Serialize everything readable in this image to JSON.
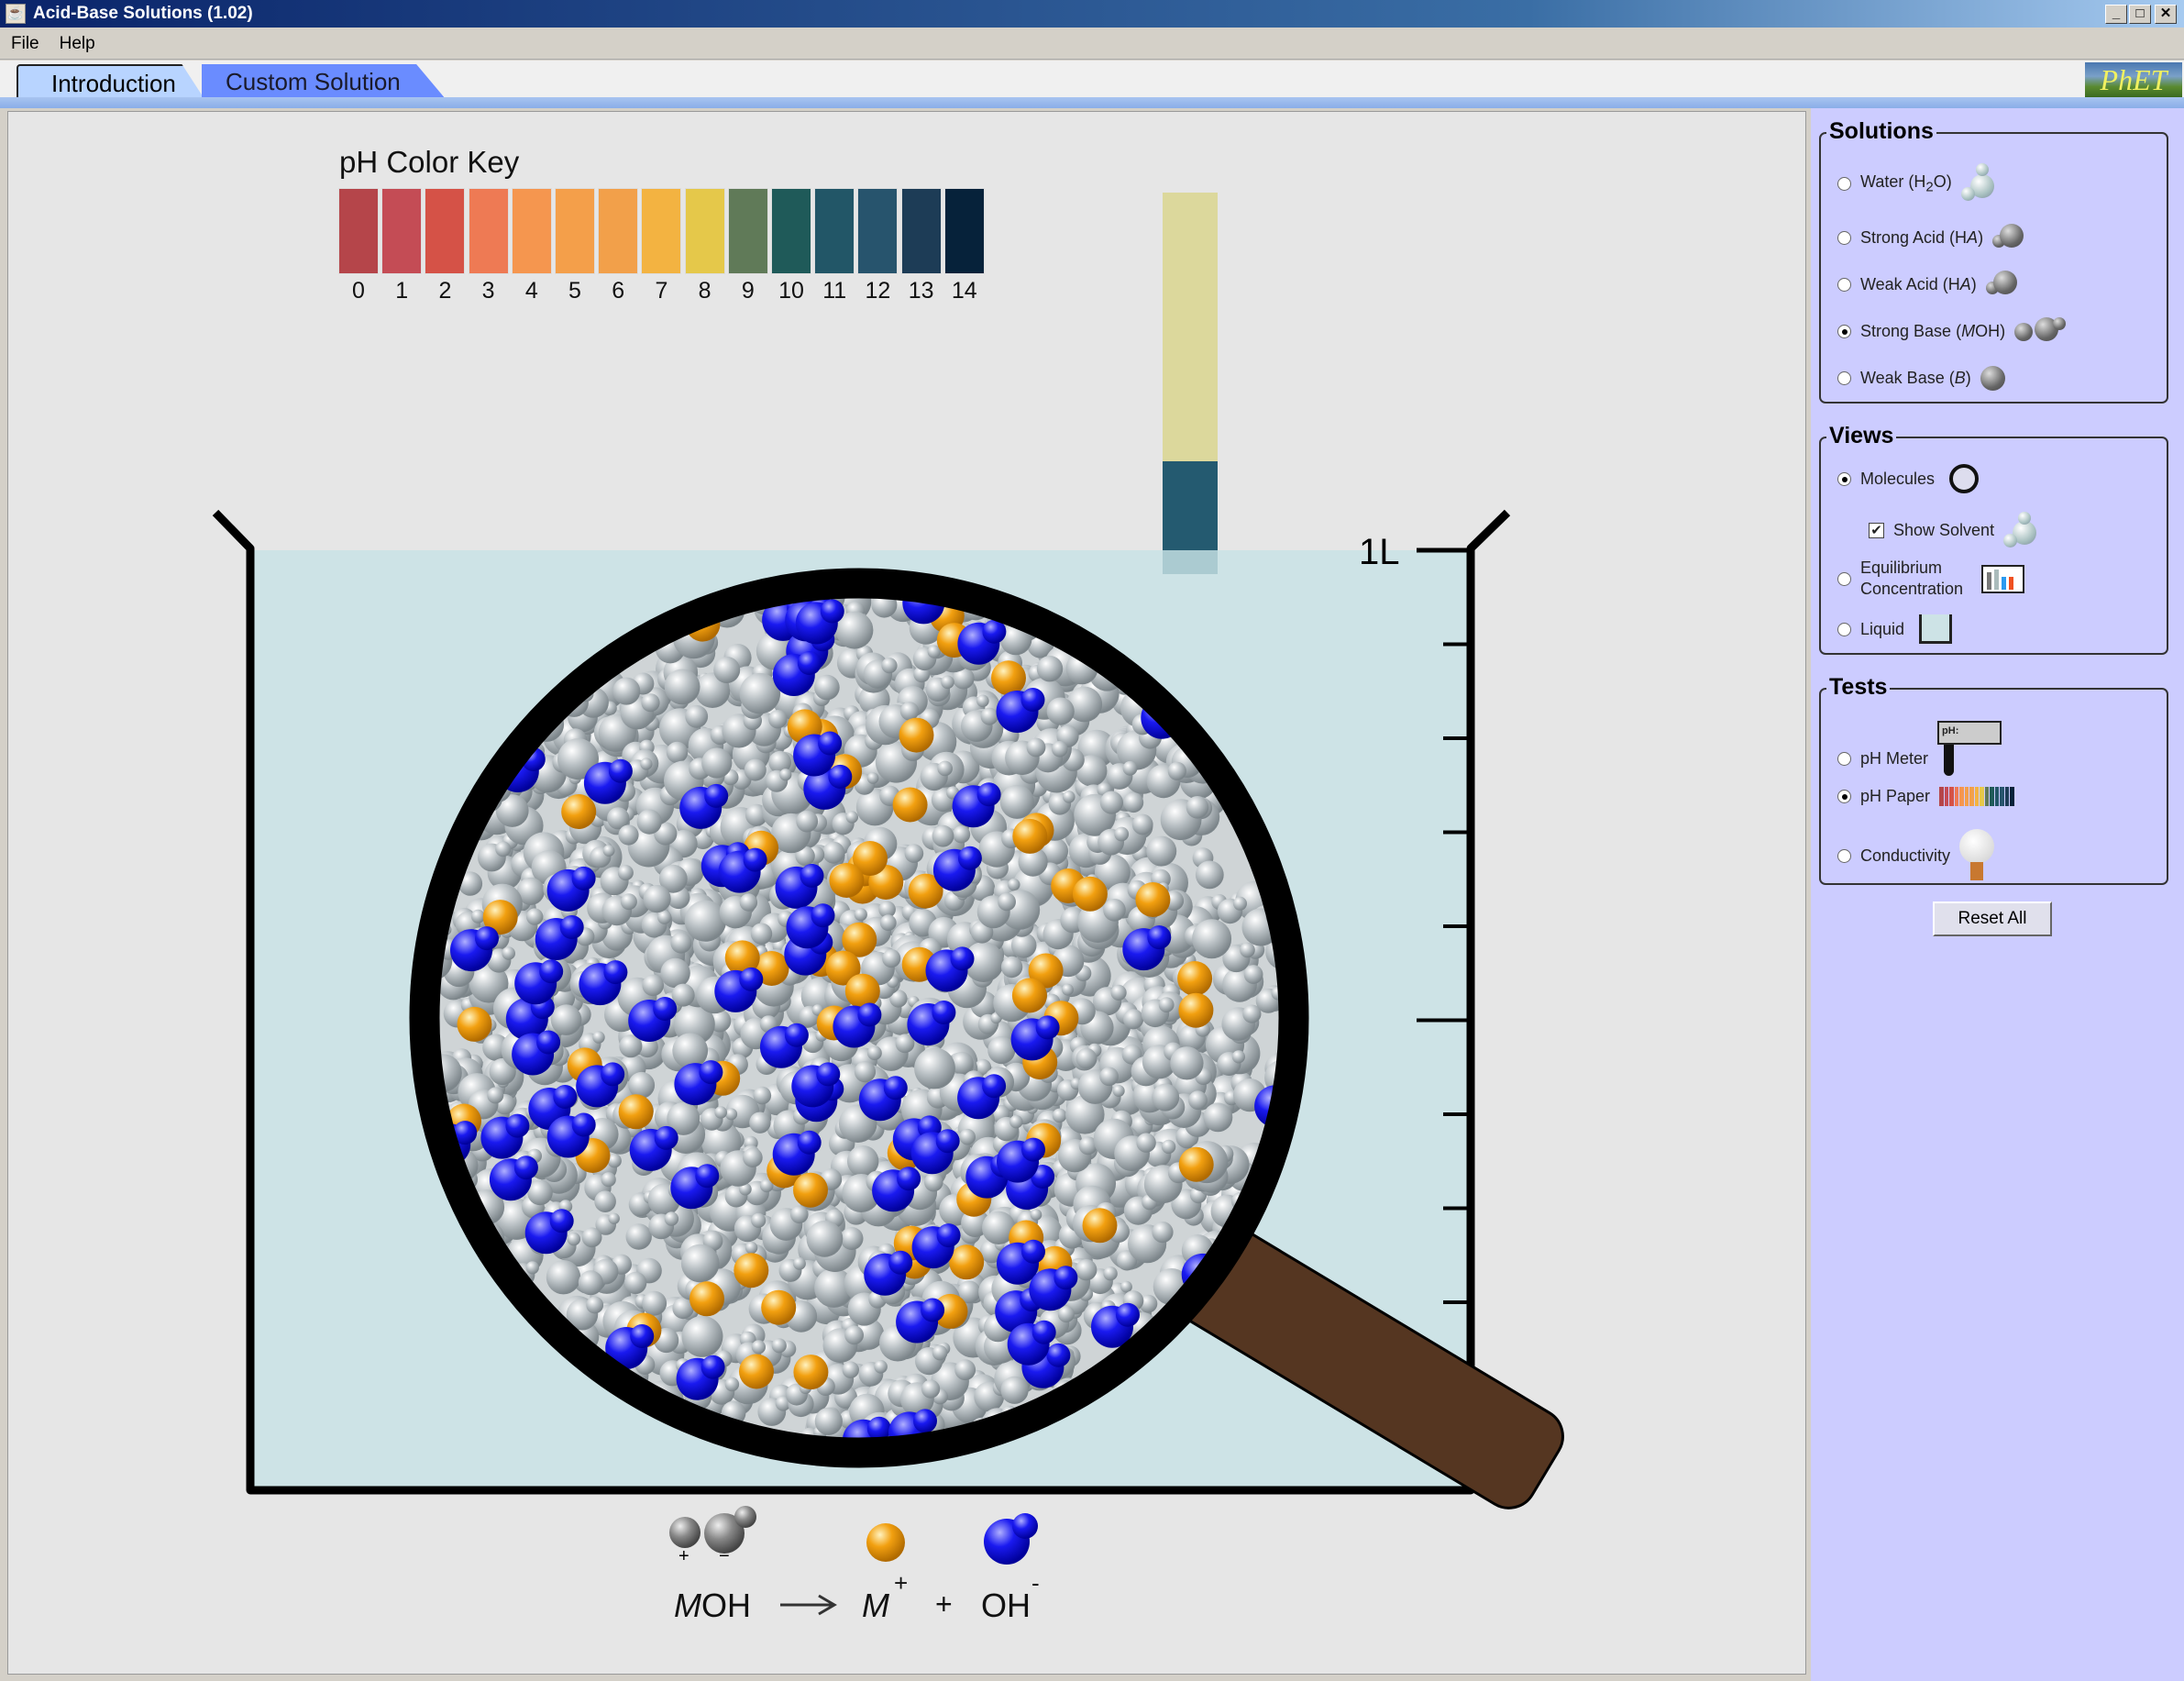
{
  "window": {
    "title": "Acid-Base Solutions (1.02)",
    "controls": [
      "_",
      "□",
      "✕"
    ]
  },
  "menu": {
    "items": [
      "File",
      "Help"
    ]
  },
  "tabs": [
    {
      "label": "Introduction",
      "selected": true
    },
    {
      "label": "Custom Solution",
      "selected": false
    }
  ],
  "logo": "PhET",
  "ph_key": {
    "title": "pH Color Key",
    "levels": [
      "0",
      "1",
      "2",
      "3",
      "4",
      "5",
      "6",
      "7",
      "8",
      "9",
      "10",
      "11",
      "12",
      "13",
      "14"
    ],
    "colors": [
      "#b5454a",
      "#c44c55",
      "#d55247",
      "#ee7a54",
      "#f5964f",
      "#f49f4a",
      "#f2a04a",
      "#f3b341",
      "#e5c84a",
      "#607a58",
      "#1f5a59",
      "#225667",
      "#27546d",
      "#1d3c56",
      "#06223a"
    ]
  },
  "ph_paper": {
    "unused_color": "#dcd89c",
    "wet_color": "#245a70",
    "dip_color": "#9cc0c8"
  },
  "beaker": {
    "volume_label": "1L",
    "liquid_color": "#cde3e6"
  },
  "magnifier": {
    "handle_color": "#553621",
    "molecule_colors": {
      "solvent": "#b8bec2",
      "M_plus": "#f2a010",
      "OH_minus": "#1010e0"
    }
  },
  "equation": {
    "reactant": "MOH",
    "reactant_italic": "M",
    "reactant_rest": "OH",
    "arrow": "→",
    "product1": "M",
    "product1_charge": "+",
    "plus": "+",
    "product2": "OH",
    "product2_charge": "-",
    "reactant_charges": [
      "+",
      "−"
    ]
  },
  "panel": {
    "solutions": {
      "title": "Solutions",
      "options": [
        {
          "pre": "Water (H",
          "sub": "2",
          "post": "O)",
          "selected": false
        },
        {
          "pre": "Strong Acid (H",
          "ital": "A",
          "post": ")",
          "selected": false
        },
        {
          "pre": "Weak Acid (H",
          "ital": "A",
          "post": ")",
          "selected": false
        },
        {
          "pre": "Strong Base (",
          "ital": "M",
          "post": "OH)",
          "selected": true,
          "charges": [
            "+",
            "−"
          ]
        },
        {
          "pre": "Weak Base (",
          "ital": "B",
          "post": ")",
          "selected": false
        }
      ]
    },
    "views": {
      "title": "Views",
      "molecules": {
        "label": "Molecules",
        "selected": true
      },
      "show_solvent": {
        "label": "Show Solvent",
        "checked": true
      },
      "equilibrium": {
        "label1": "Equilibrium",
        "label2": "Concentration",
        "selected": false
      },
      "liquid": {
        "label": "Liquid",
        "selected": false
      }
    },
    "tests": {
      "title": "Tests",
      "ph_meter": {
        "label": "pH Meter",
        "icon_text": "pH:",
        "selected": false
      },
      "ph_paper": {
        "label": "pH Paper",
        "selected": true
      },
      "conductivity": {
        "label": "Conductivity",
        "selected": false
      }
    },
    "reset_label": "Reset All"
  }
}
